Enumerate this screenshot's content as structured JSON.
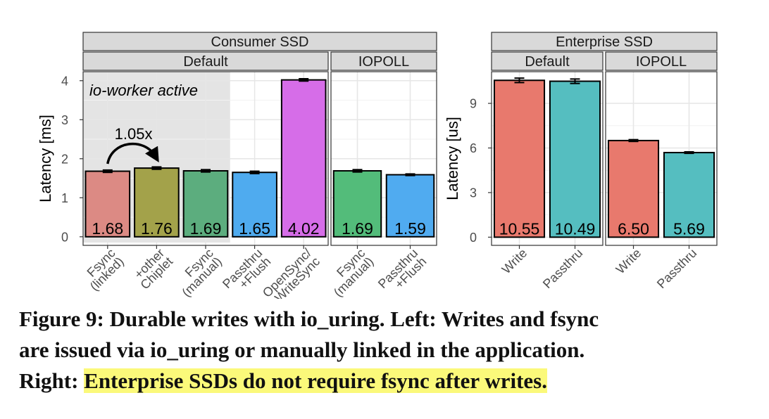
{
  "chart_data": [
    {
      "type": "bar",
      "title": "Consumer SSD",
      "ylabel": "Latency [ms]",
      "ylim": [
        -0.22,
        4.23
      ],
      "yticks": [
        0,
        1,
        2,
        3,
        4
      ],
      "grid": true,
      "annotations": [
        "io-worker active",
        "1.05x"
      ],
      "panels": [
        {
          "title": "Default",
          "categories": [
            "Fsync\n(linked)",
            "+other\nChiplet",
            "Fsync\n(manual)",
            "Passthru\n+Flush",
            "OpenSync/\nWriteSync"
          ],
          "values": [
            1.68,
            1.76,
            1.69,
            1.65,
            4.02
          ],
          "errors": [
            0.03,
            0.03,
            0.03,
            0.03,
            0.03
          ],
          "colors": [
            "#dc8a84",
            "#a3a24a",
            "#5cad7e",
            "#4fabef",
            "#d66de8"
          ]
        },
        {
          "title": "IOPOLL",
          "categories": [
            "Fsync\n(manual)",
            "Passthru\n+Flush"
          ],
          "values": [
            1.69,
            1.59
          ],
          "errors": [
            0.03,
            0.02
          ],
          "colors": [
            "#53bc7a",
            "#50abf0"
          ]
        }
      ]
    },
    {
      "type": "bar",
      "title": "Enterprise SSD",
      "ylabel": "Latency [us]",
      "ylim": [
        -0.55,
        11.13
      ],
      "yticks": [
        0,
        3,
        6,
        9
      ],
      "grid": true,
      "panels": [
        {
          "title": "Default",
          "categories": [
            "Write",
            "Passthru"
          ],
          "values": [
            10.55,
            10.49
          ],
          "errors": [
            0.15,
            0.15
          ],
          "colors": [
            "#e8796d",
            "#55bec0"
          ]
        },
        {
          "title": "IOPOLL",
          "categories": [
            "Write",
            "Passthru"
          ],
          "values": [
            6.5,
            5.69
          ],
          "value_labels": [
            "6.50",
            "5.69"
          ],
          "errors": [
            0.06,
            0.05
          ],
          "colors": [
            "#e8796d",
            "#55bec0"
          ]
        }
      ]
    }
  ],
  "caption": {
    "lines": [
      "Figure 9: Durable writes with io_uring. Left: Writes and fsync",
      "are issued via io_uring or manually linked in the application.",
      "Right: "
    ],
    "highlight": "Enterprise SSDs do not require fsync after writes."
  }
}
